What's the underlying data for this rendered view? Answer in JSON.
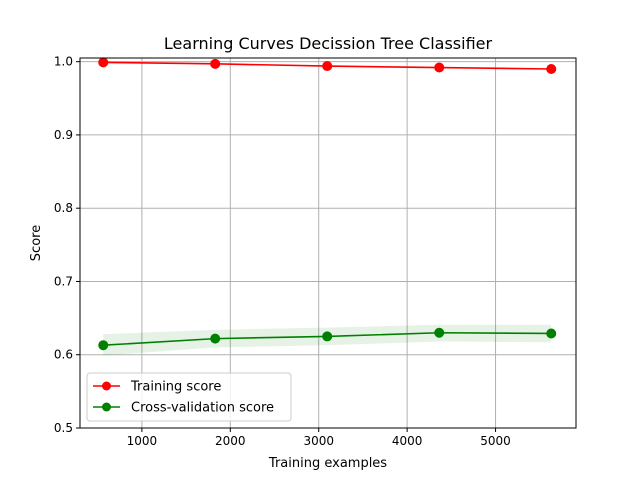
{
  "chart_data": {
    "type": "line",
    "title": "Learning Curves Decission Tree Classifier",
    "xlabel": "Training examples",
    "ylabel": "Score",
    "xlim": [
      300,
      5910
    ],
    "ylim": [
      0.5,
      1.005
    ],
    "xticks": [
      1000,
      2000,
      3000,
      4000,
      5000
    ],
    "yticks": [
      0.5,
      0.6,
      0.7,
      0.8,
      0.9,
      1.0
    ],
    "ytick_labels": [
      "0.5",
      "0.6",
      "0.7",
      "0.8",
      "0.9",
      "1.0"
    ],
    "grid": true,
    "legend_position": "lower-left",
    "x": [
      563,
      1829,
      3096,
      4363,
      5630
    ],
    "series": [
      {
        "name": "Training score",
        "color": "#ff0000",
        "values": [
          0.999,
          0.997,
          0.994,
          0.992,
          0.99
        ],
        "band": [
          [
            0.999,
            0.999
          ],
          [
            0.997,
            0.997
          ],
          [
            0.994,
            0.994
          ],
          [
            0.992,
            0.992
          ],
          [
            0.99,
            0.99
          ]
        ]
      },
      {
        "name": "Cross-validation score",
        "color": "#008000",
        "values": [
          0.613,
          0.622,
          0.625,
          0.63,
          0.629
        ],
        "band": [
          [
            0.599,
            0.628
          ],
          [
            0.61,
            0.634
          ],
          [
            0.613,
            0.637
          ],
          [
            0.618,
            0.641
          ],
          [
            0.617,
            0.641
          ]
        ]
      }
    ]
  }
}
